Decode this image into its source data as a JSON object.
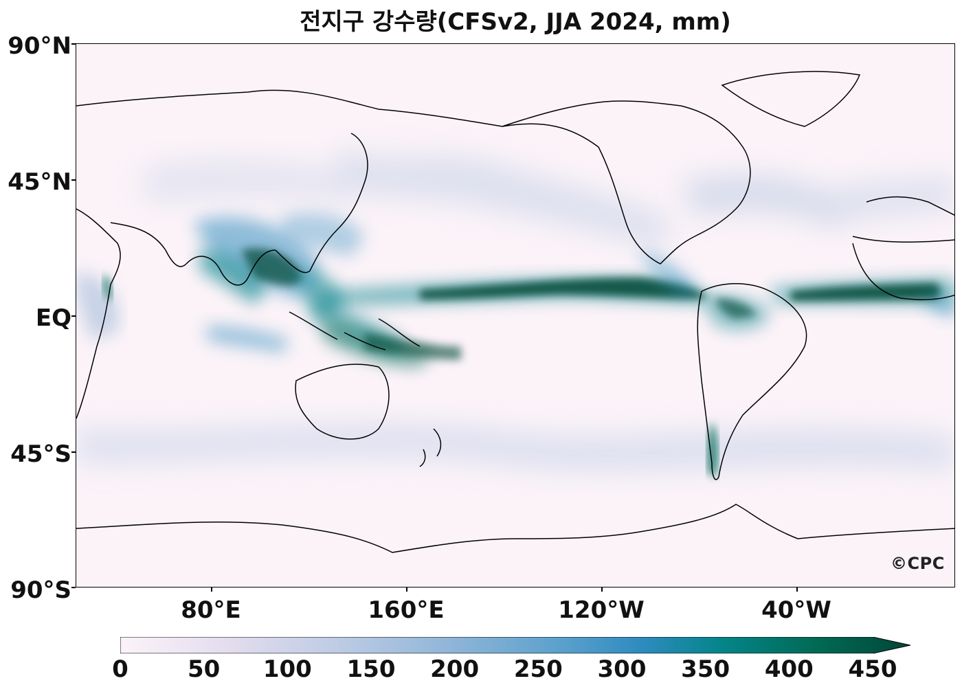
{
  "title": "전지구 강수량(CFSv2, JJA 2024, mm)",
  "watermark": "©CPC",
  "map": {
    "latitude_labels": [
      "90°N",
      "45°N",
      "EQ",
      "45°S",
      "90°S"
    ],
    "longitude_labels": [
      "80°E",
      "160°E",
      "120°W",
      "40°W"
    ],
    "projection": "PlateCarree, central longitude 180°",
    "variable": "precipitation",
    "units": "mm"
  },
  "colorbar": {
    "tick_labels": [
      "0",
      "50",
      "100",
      "150",
      "200",
      "250",
      "300",
      "350",
      "400",
      "450"
    ],
    "min": 0,
    "max": 450,
    "extend": "max",
    "colors": [
      "#fbf3f8",
      "#d8d5e8",
      "#a6bddb",
      "#67a9cf",
      "#3690c0",
      "#02818a",
      "#016c59",
      "#014636"
    ]
  }
}
